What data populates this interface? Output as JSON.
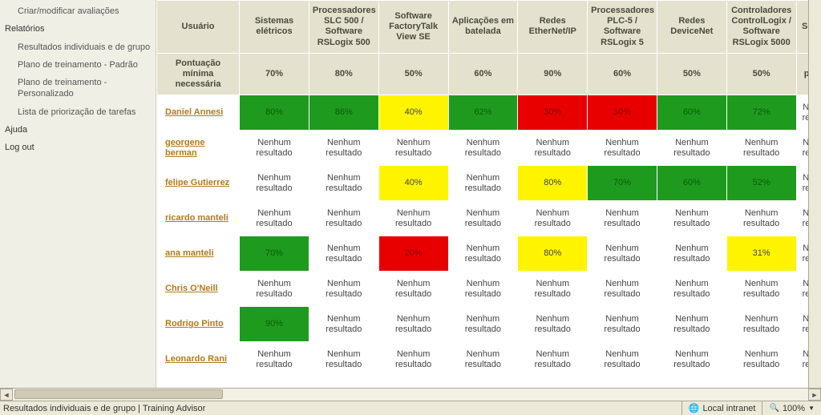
{
  "sidebar": {
    "items": [
      {
        "label": "Criar/modificar avaliações",
        "indent": true
      },
      {
        "label": "Relatórios",
        "indent": false
      },
      {
        "label": "Resultados individuais e de grupo",
        "indent": true
      },
      {
        "label": "Plano de treinamento - Padrão",
        "indent": true
      },
      {
        "label": "Plano de treinamento - Personalizado",
        "indent": true
      },
      {
        "label": "Lista de priorização de tarefas",
        "indent": true
      },
      {
        "label": "Ajuda",
        "indent": false
      },
      {
        "label": "Log out",
        "indent": false
      }
    ]
  },
  "table": {
    "user_header": "Usuário",
    "minscore_header": "Pontuação mínima necessária",
    "columns": [
      {
        "label": "Sistemas elétricos",
        "min": "70%"
      },
      {
        "label": "Processadores SLC 500 / Software RSLogix 500",
        "min": "80%"
      },
      {
        "label": "Software FactoryTalk View SE",
        "min": "50%"
      },
      {
        "label": "Aplicações em batelada",
        "min": "60%"
      },
      {
        "label": "Redes EtherNet/IP",
        "min": "90%"
      },
      {
        "label": "Processadores PLC-5 / Software RSLogix 5",
        "min": "60%"
      },
      {
        "label": "Redes DeviceNet",
        "min": "50%"
      },
      {
        "label": "Controladores ControlLogix / Software RSLogix 5000",
        "min": "50%"
      },
      {
        "label": "Sis",
        "min": "",
        "partial": true
      }
    ],
    "partial_min_placeholder": "pr",
    "no_result": "Nenhum resultado",
    "partial_none": "Ne\nres",
    "users": [
      {
        "name": "Daniel Annesi",
        "cells": [
          {
            "v": "80%",
            "s": "green"
          },
          {
            "v": "86%",
            "s": "green"
          },
          {
            "v": "40%",
            "s": "yellow"
          },
          {
            "v": "62%",
            "s": "green"
          },
          {
            "v": "30%",
            "s": "red"
          },
          {
            "v": "30%",
            "s": "red"
          },
          {
            "v": "60%",
            "s": "green"
          },
          {
            "v": "72%",
            "s": "green"
          }
        ]
      },
      {
        "name": "georgene berman",
        "cells": [
          {
            "s": "none"
          },
          {
            "s": "none"
          },
          {
            "s": "none"
          },
          {
            "s": "none"
          },
          {
            "s": "none"
          },
          {
            "s": "none"
          },
          {
            "s": "none"
          },
          {
            "s": "none"
          }
        ]
      },
      {
        "name": "felipe Gutierrez",
        "cells": [
          {
            "s": "none"
          },
          {
            "s": "none"
          },
          {
            "v": "40%",
            "s": "yellow"
          },
          {
            "s": "none"
          },
          {
            "v": "80%",
            "s": "yellow"
          },
          {
            "v": "70%",
            "s": "green"
          },
          {
            "v": "60%",
            "s": "green"
          },
          {
            "v": "52%",
            "s": "green"
          }
        ]
      },
      {
        "name": "ricardo manteli",
        "cells": [
          {
            "s": "none"
          },
          {
            "s": "none"
          },
          {
            "s": "none"
          },
          {
            "s": "none"
          },
          {
            "s": "none"
          },
          {
            "s": "none"
          },
          {
            "s": "none"
          },
          {
            "s": "none"
          }
        ]
      },
      {
        "name": "ana manteli",
        "cells": [
          {
            "v": "70%",
            "s": "green"
          },
          {
            "s": "none"
          },
          {
            "v": "20%",
            "s": "red"
          },
          {
            "s": "none"
          },
          {
            "v": "80%",
            "s": "yellow"
          },
          {
            "s": "none"
          },
          {
            "s": "none"
          },
          {
            "v": "31%",
            "s": "yellow"
          }
        ]
      },
      {
        "name": "Chris O'Neill",
        "cells": [
          {
            "s": "none"
          },
          {
            "s": "none"
          },
          {
            "s": "none"
          },
          {
            "s": "none"
          },
          {
            "s": "none"
          },
          {
            "s": "none"
          },
          {
            "s": "none"
          },
          {
            "s": "none"
          }
        ]
      },
      {
        "name": "Rodrigo Pinto",
        "cells": [
          {
            "v": "90%",
            "s": "green"
          },
          {
            "s": "none"
          },
          {
            "s": "none"
          },
          {
            "s": "none"
          },
          {
            "s": "none"
          },
          {
            "s": "none"
          },
          {
            "s": "none"
          },
          {
            "s": "none"
          }
        ]
      },
      {
        "name": "Leonardo Rani",
        "cells": [
          {
            "s": "none"
          },
          {
            "s": "none"
          },
          {
            "s": "none"
          },
          {
            "s": "none"
          },
          {
            "s": "none"
          },
          {
            "s": "none"
          },
          {
            "s": "none"
          },
          {
            "s": "none"
          }
        ]
      }
    ]
  },
  "colors": {
    "header_bg": "#e4e1ce",
    "sidebar_bg": "#f0efe6",
    "green": "#1e9b1e",
    "yellow": "#fff400",
    "red": "#e80000",
    "link": "#b07a1a"
  },
  "statusbar": {
    "left": "Resultados individuais e de grupo | Training Advisor",
    "zone": "Local intranet",
    "zoom": "100%"
  }
}
